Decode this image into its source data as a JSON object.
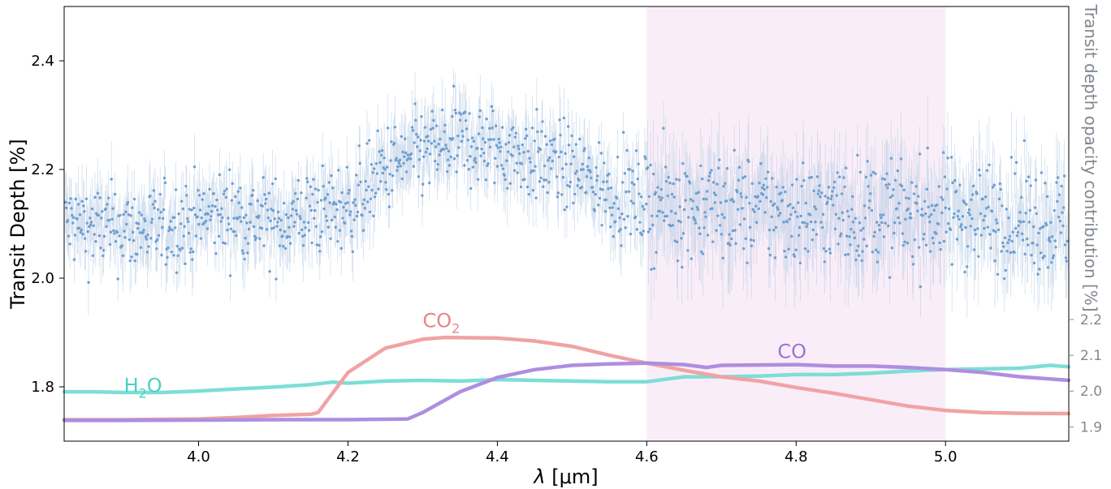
{
  "chart_data": {
    "type": "scatter",
    "xlabel_math": "λ",
    "xlabel_unit": " [μm]",
    "ylabel": "Transit Depth [%]",
    "y2label": "Transit depth opacity contribution [%]",
    "xlim": [
      3.82,
      5.165
    ],
    "ylim": [
      1.7,
      2.5
    ],
    "y2lim": [
      1.86,
      3.075
    ],
    "x_ticks": [
      "4.0",
      "4.2",
      "4.4",
      "4.6",
      "4.8",
      "5.0"
    ],
    "x_tick_values": [
      4.0,
      4.2,
      4.4,
      4.6,
      4.8,
      5.0
    ],
    "y_ticks": [
      "1.8",
      "2.0",
      "2.2",
      "2.4"
    ],
    "y_tick_values": [
      1.8,
      2.0,
      2.2,
      2.4
    ],
    "y2_ticks": [
      "1.9",
      "2.0",
      "2.1",
      "2.2"
    ],
    "y2_tick_values": [
      1.9,
      2.0,
      2.1,
      2.2
    ],
    "shaded_region": {
      "x": [
        4.6,
        5.0
      ],
      "color": "#f9eef8"
    },
    "observations": {
      "color": "#6f9fcf",
      "errorbar_color": "#b9cde6",
      "x_start": 3.822,
      "x_end": 5.163,
      "count": 1400,
      "trend": [
        [
          3.82,
          2.1
        ],
        [
          3.9,
          2.09
        ],
        [
          3.95,
          2.09
        ],
        [
          4.0,
          2.11
        ],
        [
          4.05,
          2.12
        ],
        [
          4.1,
          2.1
        ],
        [
          4.15,
          2.12
        ],
        [
          4.2,
          2.13
        ],
        [
          4.25,
          2.2
        ],
        [
          4.3,
          2.23
        ],
        [
          4.35,
          2.25
        ],
        [
          4.4,
          2.24
        ],
        [
          4.45,
          2.22
        ],
        [
          4.5,
          2.2
        ],
        [
          4.55,
          2.16
        ],
        [
          4.6,
          2.14
        ],
        [
          4.7,
          2.13
        ],
        [
          4.8,
          2.12
        ],
        [
          4.9,
          2.12
        ],
        [
          5.0,
          2.12
        ],
        [
          5.05,
          2.12
        ],
        [
          5.1,
          2.11
        ],
        [
          5.165,
          2.1
        ]
      ]
    },
    "series": [
      {
        "name": "H2O",
        "color": "#7dded6",
        "points": [
          [
            3.82,
            1.998
          ],
          [
            3.86,
            1.998
          ],
          [
            3.9,
            1.996
          ],
          [
            3.95,
            1.996
          ],
          [
            4.0,
            2.0
          ],
          [
            4.05,
            2.006
          ],
          [
            4.1,
            2.011
          ],
          [
            4.15,
            2.018
          ],
          [
            4.18,
            2.025
          ],
          [
            4.2,
            2.022
          ],
          [
            4.25,
            2.028
          ],
          [
            4.3,
            2.03
          ],
          [
            4.35,
            2.028
          ],
          [
            4.4,
            2.032
          ],
          [
            4.45,
            2.03
          ],
          [
            4.5,
            2.028
          ],
          [
            4.55,
            2.026
          ],
          [
            4.6,
            2.026
          ],
          [
            4.65,
            2.04
          ],
          [
            4.7,
            2.04
          ],
          [
            4.75,
            2.042
          ],
          [
            4.8,
            2.046
          ],
          [
            4.85,
            2.046
          ],
          [
            4.9,
            2.05
          ],
          [
            4.95,
            2.056
          ],
          [
            5.0,
            2.06
          ],
          [
            5.05,
            2.062
          ],
          [
            5.1,
            2.064
          ],
          [
            5.14,
            2.072
          ],
          [
            5.165,
            2.068
          ]
        ]
      },
      {
        "name": "CO2",
        "color": "#f0a3a3",
        "points": [
          [
            3.82,
            1.92
          ],
          [
            3.9,
            1.92
          ],
          [
            4.0,
            1.922
          ],
          [
            4.05,
            1.926
          ],
          [
            4.1,
            1.932
          ],
          [
            4.15,
            1.935
          ],
          [
            4.16,
            1.94
          ],
          [
            4.2,
            2.052
          ],
          [
            4.25,
            2.12
          ],
          [
            4.3,
            2.145
          ],
          [
            4.33,
            2.15
          ],
          [
            4.4,
            2.148
          ],
          [
            4.45,
            2.14
          ],
          [
            4.5,
            2.125
          ],
          [
            4.55,
            2.1
          ],
          [
            4.6,
            2.078
          ],
          [
            4.65,
            2.058
          ],
          [
            4.7,
            2.04
          ],
          [
            4.75,
            2.028
          ],
          [
            4.8,
            2.01
          ],
          [
            4.85,
            1.994
          ],
          [
            4.9,
            1.976
          ],
          [
            4.95,
            1.958
          ],
          [
            5.0,
            1.946
          ],
          [
            5.05,
            1.94
          ],
          [
            5.1,
            1.938
          ],
          [
            5.165,
            1.937
          ]
        ]
      },
      {
        "name": "CO",
        "color": "#ae8ee0",
        "points": [
          [
            3.82,
            1.918
          ],
          [
            3.9,
            1.918
          ],
          [
            4.0,
            1.919
          ],
          [
            4.1,
            1.92
          ],
          [
            4.2,
            1.92
          ],
          [
            4.28,
            1.922
          ],
          [
            4.3,
            1.94
          ],
          [
            4.35,
            1.998
          ],
          [
            4.4,
            2.038
          ],
          [
            4.45,
            2.06
          ],
          [
            4.5,
            2.072
          ],
          [
            4.55,
            2.076
          ],
          [
            4.6,
            2.078
          ],
          [
            4.65,
            2.074
          ],
          [
            4.68,
            2.066
          ],
          [
            4.7,
            2.072
          ],
          [
            4.8,
            2.074
          ],
          [
            4.85,
            2.07
          ],
          [
            4.9,
            2.07
          ],
          [
            4.95,
            2.066
          ],
          [
            5.0,
            2.06
          ],
          [
            5.05,
            2.052
          ],
          [
            5.1,
            2.04
          ],
          [
            5.165,
            2.03
          ]
        ]
      }
    ],
    "annotations": {
      "h2o": {
        "base": "H",
        "sub": "2",
        "tail": "O",
        "color": "#4ccfc5",
        "x": 3.9,
        "y": 1.79
      },
      "co2": {
        "base": "CO",
        "sub": "2",
        "tail": "",
        "color": "#e88585",
        "x": 4.3,
        "y": 1.91
      },
      "co": {
        "base": "CO",
        "sub": "",
        "tail": "",
        "color": "#9d72d6",
        "x": 4.775,
        "y": 1.853
      }
    }
  }
}
